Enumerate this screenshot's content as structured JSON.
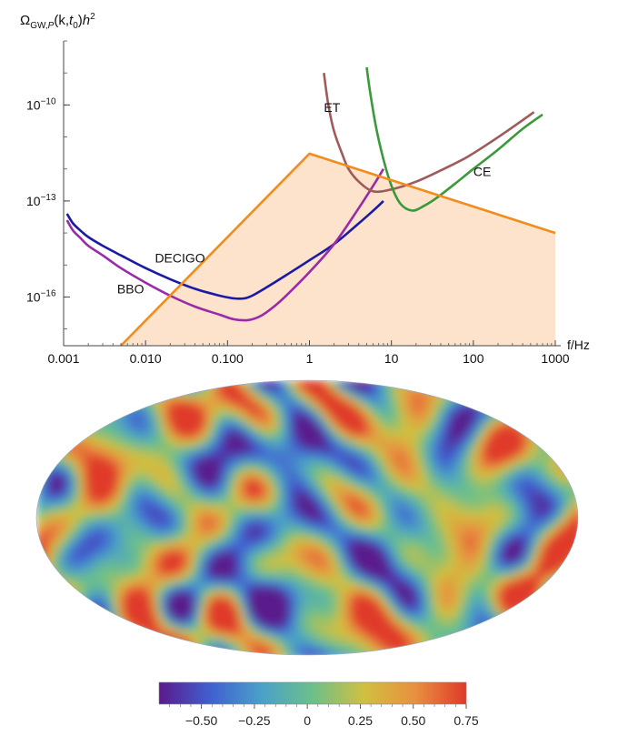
{
  "chart_data": [
    {
      "type": "line",
      "title": "",
      "ylabel": "Ω_{GW,P}(k,t_0)h^2",
      "xlabel": "f/Hz",
      "x_scale": "log",
      "y_scale": "log",
      "xlim": [
        0.001,
        1000
      ],
      "ylim": [
        3e-18,
        1e-08
      ],
      "x_ticks": [
        {
          "value": 0.001,
          "label": "0.001"
        },
        {
          "value": 0.01,
          "label": "0.010"
        },
        {
          "value": 0.1,
          "label": "0.100"
        },
        {
          "value": 1,
          "label": "1"
        },
        {
          "value": 10,
          "label": "10"
        },
        {
          "value": 100,
          "label": "100"
        },
        {
          "value": 1000,
          "label": "1000"
        }
      ],
      "y_ticks": [
        {
          "value": 1e-10,
          "base": "10",
          "exp": "−10"
        },
        {
          "value": 1e-13,
          "base": "10",
          "exp": "−13"
        },
        {
          "value": 1e-16,
          "base": "10",
          "exp": "−16"
        }
      ],
      "series": [
        {
          "name": "DECIGO",
          "color": "#1a1aa6",
          "x": [
            0.0011,
            0.0013,
            0.0016,
            0.002,
            0.003,
            0.005,
            0.01,
            0.02,
            0.04,
            0.08,
            0.12,
            0.16,
            0.2,
            0.3,
            0.5,
            1,
            2,
            4,
            6,
            8
          ],
          "y": [
            4e-14,
            2e-14,
            1.2e-14,
            7.5e-15,
            4e-15,
            2e-15,
            8e-16,
            3.6e-16,
            1.8e-16,
            1.1e-16,
            9e-17,
            9e-17,
            1.1e-16,
            2e-16,
            4.5e-16,
            1.4e-15,
            4.5e-15,
            2e-14,
            5e-14,
            1e-13
          ]
        },
        {
          "name": "BBO",
          "color": "#9a2aa8",
          "x": [
            0.0011,
            0.0013,
            0.0016,
            0.002,
            0.003,
            0.005,
            0.01,
            0.02,
            0.04,
            0.08,
            0.12,
            0.18,
            0.25,
            0.35,
            0.5,
            1,
            2,
            4,
            6,
            8
          ],
          "y": [
            2.5e-14,
            1.2e-14,
            7e-15,
            4e-15,
            2e-15,
            8e-16,
            2.8e-16,
            1.1e-16,
            5e-17,
            2.8e-17,
            2e-17,
            1.9e-17,
            2.5e-17,
            4.5e-17,
            1e-16,
            6e-16,
            4.5e-15,
            6e-14,
            3e-13,
            1e-12
          ]
        },
        {
          "name": "ET",
          "color": "#a05a5a",
          "x": [
            1.5,
            1.7,
            2,
            2.5,
            3,
            4,
            6,
            10,
            20,
            40,
            80,
            150,
            300,
            550
          ],
          "y": [
            1e-09,
            1e-10,
            1.5e-11,
            3e-12,
            1e-12,
            4e-13,
            2e-13,
            2.3e-13,
            4e-13,
            9e-13,
            2.2e-12,
            6e-12,
            2e-11,
            6e-11
          ]
        },
        {
          "name": "CE",
          "color": "#3a9a3a",
          "x": [
            5,
            5.5,
            6.5,
            8,
            10,
            13,
            18,
            25,
            35,
            60,
            100,
            200,
            400,
            700
          ],
          "y": [
            1.5e-09,
            2.5e-10,
            2e-11,
            2e-12,
            3e-13,
            8e-14,
            5e-14,
            7e-14,
            1.2e-13,
            3.5e-13,
            1e-12,
            4e-12,
            1.8e-11,
            5e-11
          ]
        },
        {
          "name": "",
          "color": "#f28c1c",
          "fill": "#fde3cb",
          "x": [
            0.005,
            1,
            1000
          ],
          "y": [
            3e-18,
            3e-12,
            1e-14
          ]
        }
      ],
      "labels": [
        {
          "text": "DECIGO",
          "x": 0.013,
          "y": 1.2e-15
        },
        {
          "text": "BBO",
          "x": 0.0045,
          "y": 1.3e-16
        },
        {
          "text": "ET",
          "x": 1.5,
          "y": 6e-11
        },
        {
          "text": "CE",
          "x": 100,
          "y": 6e-13
        }
      ]
    },
    {
      "type": "heatmap",
      "projection": "mollweide",
      "colorbar": {
        "range": [
          -0.7,
          0.75
        ],
        "ticks": [
          {
            "value": -0.5,
            "label": "−0.50"
          },
          {
            "value": -0.25,
            "label": "−0.25"
          },
          {
            "value": 0,
            "label": "0"
          },
          {
            "value": 0.25,
            "label": "0.25"
          },
          {
            "value": 0.5,
            "label": "0.50"
          },
          {
            "value": 0.75,
            "label": "0.75"
          }
        ],
        "colors": [
          "#5a1a8c",
          "#4060d0",
          "#4aa0c8",
          "#6cc08a",
          "#d0c040",
          "#e89040",
          "#e03a2a"
        ]
      }
    }
  ]
}
